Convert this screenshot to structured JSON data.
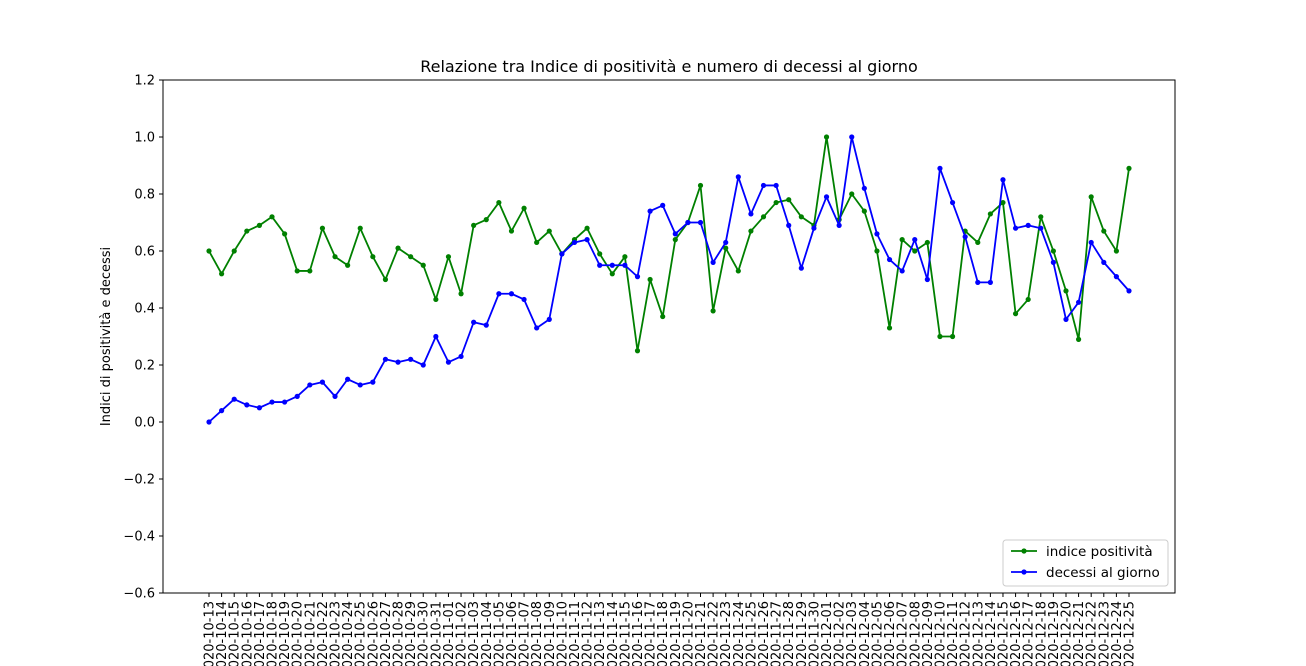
{
  "chart_data": {
    "type": "line",
    "title": "Relazione tra Indice di positività e numero di decessi al giorno",
    "xlabel": "",
    "ylabel": "Indici di positività e decessi",
    "ylim": [
      -0.6,
      1.2
    ],
    "yticks": [
      -0.6,
      -0.4,
      -0.2,
      0.0,
      0.2,
      0.4,
      0.6,
      0.8,
      1.0,
      1.2
    ],
    "ytick_labels": [
      "−0.6",
      "−0.4",
      "−0.2",
      "0.0",
      "0.2",
      "0.4",
      "0.6",
      "0.8",
      "1.0",
      "1.2"
    ],
    "grid": false,
    "legend_position": "lower-right",
    "categories": [
      "2020-10-13",
      "2020-10-14",
      "2020-10-15",
      "2020-10-16",
      "2020-10-17",
      "2020-10-18",
      "2020-10-19",
      "2020-10-20",
      "2020-10-21",
      "2020-10-22",
      "2020-10-23",
      "2020-10-24",
      "2020-10-25",
      "2020-10-26",
      "2020-10-27",
      "2020-10-28",
      "2020-10-29",
      "2020-10-30",
      "2020-10-31",
      "2020-11-01",
      "2020-11-02",
      "2020-11-03",
      "2020-11-04",
      "2020-11-05",
      "2020-11-06",
      "2020-11-07",
      "2020-11-08",
      "2020-11-09",
      "2020-11-10",
      "2020-11-11",
      "2020-11-12",
      "2020-11-13",
      "2020-11-14",
      "2020-11-15",
      "2020-11-16",
      "2020-11-17",
      "2020-11-18",
      "2020-11-19",
      "2020-11-20",
      "2020-11-21",
      "2020-11-22",
      "2020-11-23",
      "2020-11-24",
      "2020-11-25",
      "2020-11-26",
      "2020-11-27",
      "2020-11-28",
      "2020-11-29",
      "2020-11-30",
      "2020-12-01",
      "2020-12-02",
      "2020-12-03",
      "2020-12-04",
      "2020-12-05",
      "2020-12-06",
      "2020-12-07",
      "2020-12-08",
      "2020-12-09",
      "2020-12-10",
      "2020-12-11",
      "2020-12-12",
      "2020-12-13",
      "2020-12-14",
      "2020-12-15",
      "2020-12-16",
      "2020-12-17",
      "2020-12-18",
      "2020-12-19",
      "2020-12-20",
      "2020-12-21",
      "2020-12-22",
      "2020-12-23",
      "2020-12-24",
      "2020-12-25"
    ],
    "series": [
      {
        "name": "indice positività",
        "color": "#008000",
        "values": [
          0.6,
          0.52,
          0.6,
          0.67,
          0.69,
          0.72,
          0.66,
          0.53,
          0.53,
          0.68,
          0.58,
          0.55,
          0.68,
          0.58,
          0.5,
          0.61,
          0.58,
          0.55,
          0.43,
          0.58,
          0.45,
          0.69,
          0.71,
          0.77,
          0.67,
          0.75,
          0.63,
          0.67,
          0.59,
          0.64,
          0.68,
          0.59,
          0.52,
          0.58,
          0.25,
          0.5,
          0.37,
          0.64,
          0.7,
          0.83,
          0.39,
          0.61,
          0.53,
          0.67,
          0.72,
          0.77,
          0.78,
          0.72,
          0.69,
          1.0,
          0.71,
          0.8,
          0.74,
          0.6,
          0.33,
          0.64,
          0.6,
          0.63,
          0.3,
          0.3,
          0.67,
          0.63,
          0.73,
          0.77,
          0.38,
          0.43,
          0.72,
          0.6,
          0.46,
          0.29,
          0.79,
          0.67,
          0.6,
          0.89
        ]
      },
      {
        "name": "decessi al giorno",
        "color": "#0000ff",
        "values": [
          0.0,
          0.04,
          0.08,
          0.06,
          0.05,
          0.07,
          0.07,
          0.09,
          0.13,
          0.14,
          0.09,
          0.15,
          0.13,
          0.14,
          0.22,
          0.21,
          0.22,
          0.2,
          0.3,
          0.21,
          0.23,
          0.35,
          0.34,
          0.45,
          0.45,
          0.43,
          0.33,
          0.36,
          0.59,
          0.63,
          0.64,
          0.55,
          0.55,
          0.55,
          0.51,
          0.74,
          0.76,
          0.66,
          0.7,
          0.7,
          0.56,
          0.63,
          0.86,
          0.73,
          0.83,
          0.83,
          0.69,
          0.54,
          0.68,
          0.79,
          0.69,
          1.0,
          0.82,
          0.66,
          0.57,
          0.53,
          0.64,
          0.5,
          0.89,
          0.77,
          0.65,
          0.49,
          0.49,
          0.85,
          0.68,
          0.69,
          0.68,
          0.56,
          0.36,
          0.42,
          0.63,
          0.56,
          0.51,
          0.46
        ]
      }
    ]
  }
}
